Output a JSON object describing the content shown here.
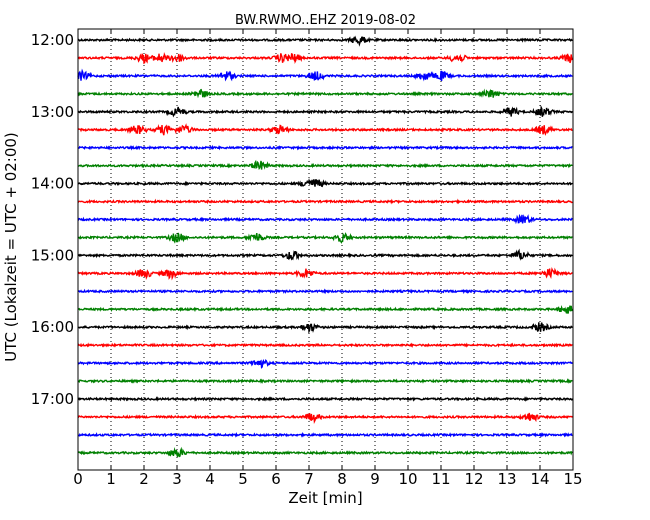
{
  "chart_data": {
    "type": "line",
    "title": "BW.RWMO..EHZ 2019-08-02",
    "xlabel": "Zeit  [min]",
    "ylabel": "UTC (Lokalzeit = UTC + 02:00)",
    "xlim": [
      0,
      15
    ],
    "x_ticks": [
      "0",
      "1",
      "2",
      "3",
      "4",
      "5",
      "6",
      "7",
      "8",
      "9",
      "10",
      "11",
      "12",
      "13",
      "14",
      "15"
    ],
    "y_tick_labels": [
      "12:00",
      "13:00",
      "14:00",
      "15:00",
      "16:00",
      "17:00"
    ],
    "grid": "vertical dotted lines at each minute",
    "trace_colors": [
      "#000000",
      "#ff0000",
      "#0000ff",
      "#008000"
    ],
    "traces": [
      {
        "start": "12:00",
        "color": "#000000",
        "events_min": [
          8.5
        ]
      },
      {
        "start": "12:15",
        "color": "#ff0000",
        "events_min": [
          2.0,
          2.5,
          3.0,
          6.2,
          6.5,
          11.5,
          14.9
        ]
      },
      {
        "start": "12:30",
        "color": "#0000ff",
        "events_min": [
          0.1,
          4.5,
          7.2,
          10.5,
          11.0
        ]
      },
      {
        "start": "12:45",
        "color": "#008000",
        "events_min": [
          3.7,
          12.5
        ]
      },
      {
        "start": "13:00",
        "color": "#000000",
        "events_min": [
          3.0,
          13.1,
          14.1
        ]
      },
      {
        "start": "13:15",
        "color": "#ff0000",
        "events_min": [
          1.8,
          2.6,
          3.2,
          6.1,
          14.1
        ]
      },
      {
        "start": "13:30",
        "color": "#0000ff",
        "events_min": []
      },
      {
        "start": "13:45",
        "color": "#008000",
        "events_min": [
          5.5
        ]
      },
      {
        "start": "14:00",
        "color": "#000000",
        "events_min": [
          7.0,
          7.2
        ]
      },
      {
        "start": "14:15",
        "color": "#ff0000",
        "events_min": []
      },
      {
        "start": "14:30",
        "color": "#0000ff",
        "events_min": [
          13.5
        ]
      },
      {
        "start": "14:45",
        "color": "#008000",
        "events_min": [
          3.0,
          5.4,
          8.0
        ]
      },
      {
        "start": "15:00",
        "color": "#000000",
        "events_min": [
          6.5,
          13.4
        ]
      },
      {
        "start": "15:15",
        "color": "#ff0000",
        "events_min": [
          2.0,
          2.8,
          6.9,
          14.3
        ]
      },
      {
        "start": "15:30",
        "color": "#0000ff",
        "events_min": []
      },
      {
        "start": "15:45",
        "color": "#008000",
        "events_min": [
          14.8
        ]
      },
      {
        "start": "16:00",
        "color": "#000000",
        "events_min": [
          7.0,
          14.0
        ]
      },
      {
        "start": "16:15",
        "color": "#ff0000",
        "events_min": []
      },
      {
        "start": "16:30",
        "color": "#0000ff",
        "events_min": [
          5.5
        ]
      },
      {
        "start": "16:45",
        "color": "#008000",
        "events_min": []
      },
      {
        "start": "17:00",
        "color": "#000000",
        "events_min": []
      },
      {
        "start": "17:15",
        "color": "#ff0000",
        "events_min": [
          7.1,
          13.7
        ]
      },
      {
        "start": "17:30",
        "color": "#0000ff",
        "events_min": []
      },
      {
        "start": "17:45",
        "color": "#008000",
        "events_min": [
          3.0
        ]
      }
    ]
  }
}
